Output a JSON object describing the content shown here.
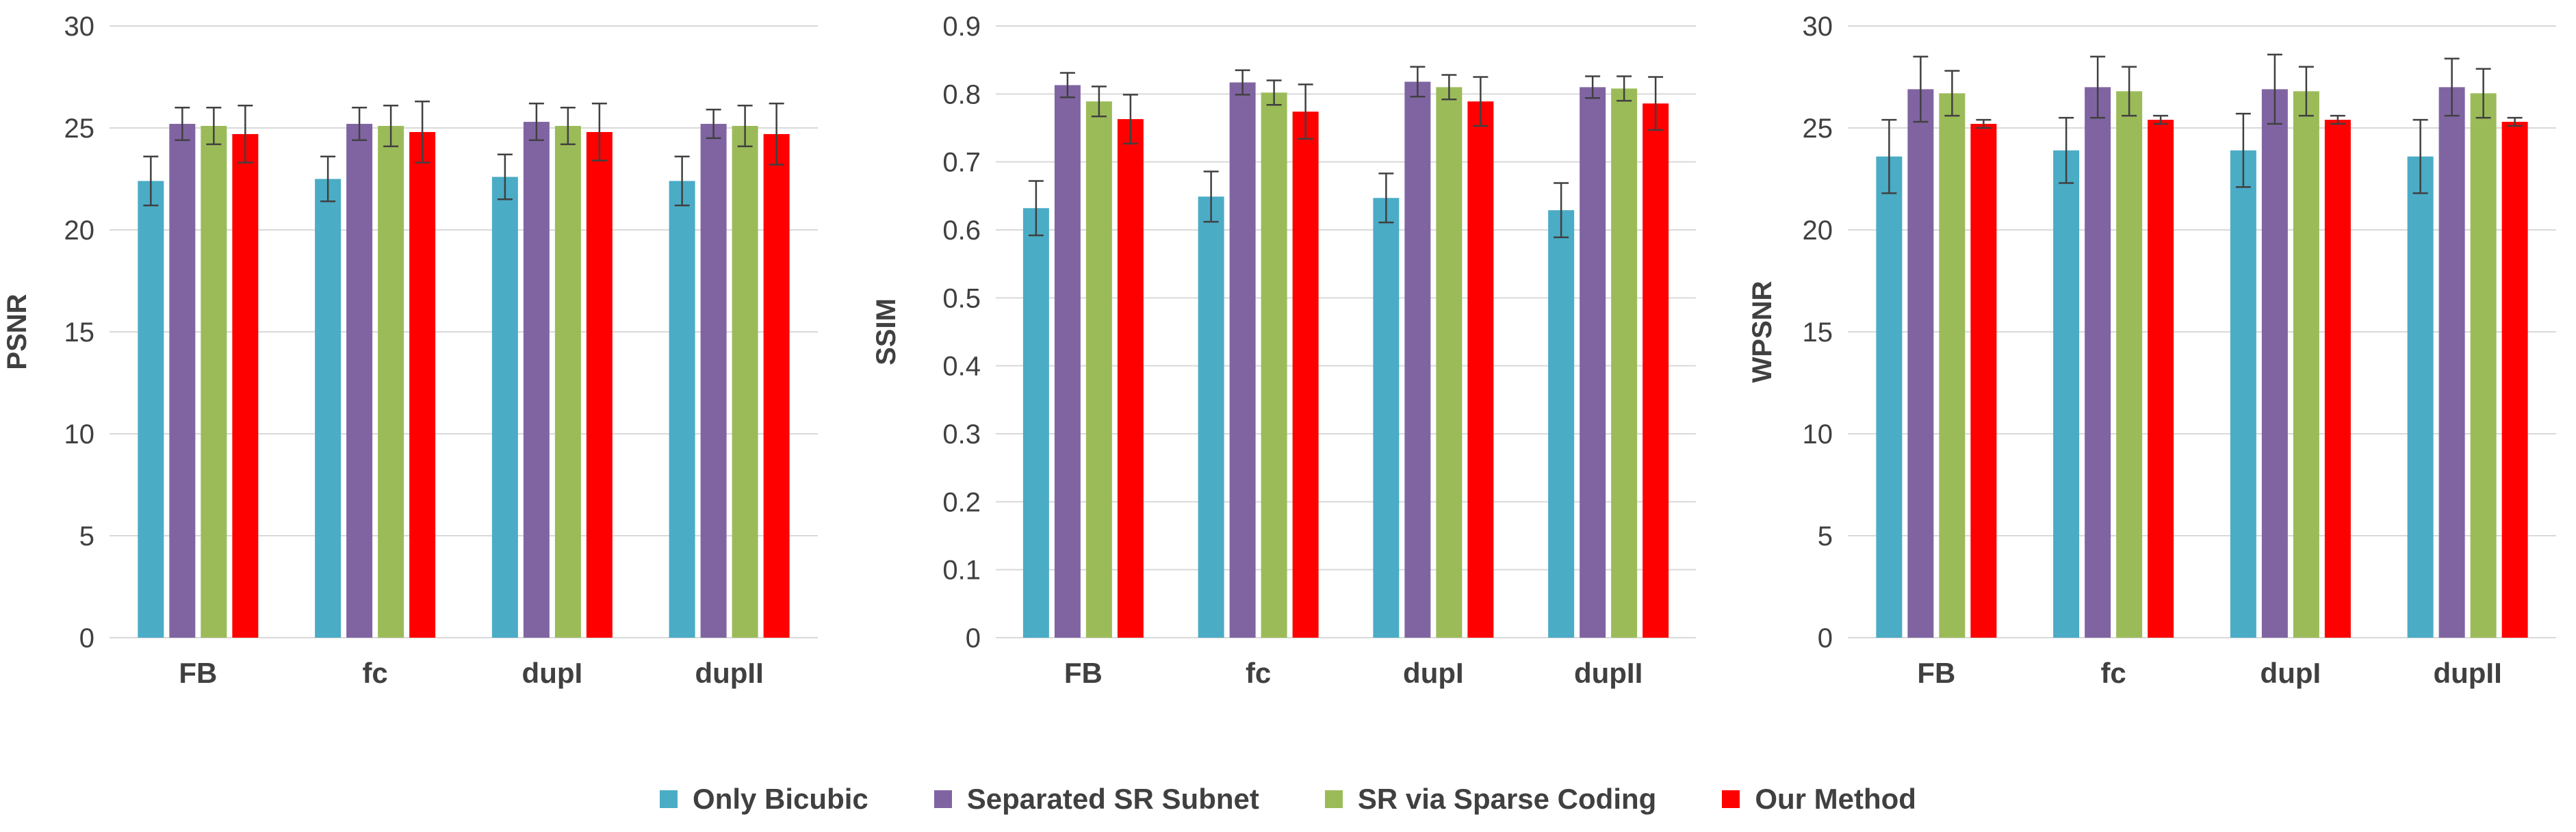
{
  "chart_data": [
    {
      "type": "bar",
      "title": "",
      "xlabel": "",
      "ylabel": "PSNR",
      "ylim": [
        0,
        30
      ],
      "yticks": [
        0,
        5,
        10,
        15,
        20,
        25,
        30
      ],
      "ytick_labels": [
        "0",
        "5",
        "10",
        "15",
        "20",
        "25",
        "30"
      ],
      "categories": [
        "FB",
        "fc",
        "dupI",
        "dupII"
      ],
      "grid": true,
      "series": [
        {
          "name": "Only Bicubic",
          "values": [
            22.4,
            22.5,
            22.6,
            22.4
          ],
          "errors": [
            1.2,
            1.1,
            1.1,
            1.2
          ]
        },
        {
          "name": "Separated SR Subnet",
          "values": [
            25.2,
            25.2,
            25.3,
            25.2
          ],
          "errors": [
            0.8,
            0.8,
            0.9,
            0.7
          ]
        },
        {
          "name": "SR via Sparse Coding",
          "values": [
            25.1,
            25.1,
            25.1,
            25.1
          ],
          "errors": [
            0.9,
            1.0,
            0.9,
            1.0
          ]
        },
        {
          "name": "Our Method",
          "values": [
            24.7,
            24.8,
            24.8,
            24.7
          ],
          "errors": [
            1.4,
            1.5,
            1.4,
            1.5
          ]
        }
      ]
    },
    {
      "type": "bar",
      "title": "",
      "xlabel": "",
      "ylabel": "SSIM",
      "ylim": [
        0,
        0.9
      ],
      "yticks": [
        0,
        0.1,
        0.2,
        0.3,
        0.4,
        0.5,
        0.6,
        0.7,
        0.8,
        0.9
      ],
      "ytick_labels": [
        "0",
        "0.1",
        "0.2",
        "0.3",
        "0.4",
        "0.5",
        "0.6",
        "0.7",
        "0.8",
        "0.9"
      ],
      "categories": [
        "FB",
        "fc",
        "dupI",
        "dupII"
      ],
      "grid": true,
      "series": [
        {
          "name": "Only Bicubic",
          "values": [
            0.632,
            0.649,
            0.647,
            0.629
          ],
          "errors": [
            0.04,
            0.037,
            0.036,
            0.04
          ]
        },
        {
          "name": "Separated SR Subnet",
          "values": [
            0.813,
            0.817,
            0.818,
            0.81
          ],
          "errors": [
            0.018,
            0.018,
            0.022,
            0.016
          ]
        },
        {
          "name": "SR via Sparse Coding",
          "values": [
            0.789,
            0.802,
            0.81,
            0.808
          ],
          "errors": [
            0.022,
            0.018,
            0.018,
            0.018
          ]
        },
        {
          "name": "Our Method",
          "values": [
            0.763,
            0.774,
            0.789,
            0.786
          ],
          "errors": [
            0.036,
            0.04,
            0.036,
            0.039
          ]
        }
      ]
    },
    {
      "type": "bar",
      "title": "",
      "xlabel": "",
      "ylabel": "WPSNR",
      "ylim": [
        0,
        30
      ],
      "yticks": [
        0,
        5,
        10,
        15,
        20,
        25,
        30
      ],
      "ytick_labels": [
        "0",
        "5",
        "10",
        "15",
        "20",
        "25",
        "30"
      ],
      "categories": [
        "FB",
        "fc",
        "dupI",
        "dupII"
      ],
      "grid": true,
      "series": [
        {
          "name": "Only Bicubic",
          "values": [
            23.6,
            23.9,
            23.9,
            23.6
          ],
          "errors": [
            1.8,
            1.6,
            1.8,
            1.8
          ]
        },
        {
          "name": "Separated SR Subnet",
          "values": [
            26.9,
            27.0,
            26.9,
            27.0
          ],
          "errors": [
            1.6,
            1.5,
            1.7,
            1.4
          ]
        },
        {
          "name": "SR via Sparse Coding",
          "values": [
            26.7,
            26.8,
            26.8,
            26.7
          ],
          "errors": [
            1.1,
            1.2,
            1.2,
            1.2
          ]
        },
        {
          "name": "Our Method",
          "values": [
            25.2,
            25.4,
            25.4,
            25.3
          ],
          "errors": [
            0.2,
            0.2,
            0.2,
            0.2
          ]
        }
      ]
    }
  ],
  "legend": [
    {
      "label": "Only Bicubic",
      "color": "#4BACC6"
    },
    {
      "label": "Separated SR Subnet",
      "color": "#8064A2"
    },
    {
      "label": "SR via Sparse Coding",
      "color": "#9BBB59"
    },
    {
      "label": "Our Method",
      "color": "#FF0000"
    }
  ],
  "colors": {
    "grid": "#d9d9d9",
    "axis_text": "#404040",
    "error_bar": "#404040"
  }
}
